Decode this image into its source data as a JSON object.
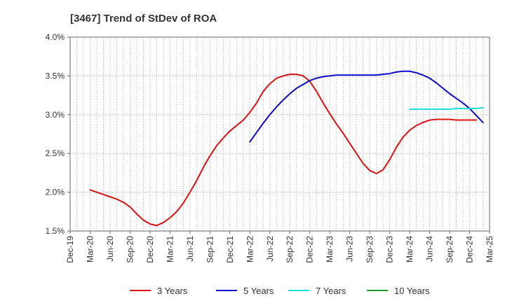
{
  "chart_data": {
    "type": "line",
    "title": "[3467]  Trend of StDev of ROA",
    "xlabel": "",
    "ylabel": "",
    "x_ticks": [
      "Dec-19",
      "Mar-20",
      "Jun-20",
      "Sep-20",
      "Dec-20",
      "Mar-21",
      "Jun-21",
      "Sep-21",
      "Dec-21",
      "Mar-22",
      "Jun-22",
      "Sep-22",
      "Dec-22",
      "Mar-23",
      "Jun-23",
      "Sep-23",
      "Dec-23",
      "Mar-24",
      "Jun-24",
      "Sep-24",
      "Dec-24",
      "Mar-25"
    ],
    "y_ticks": [
      "1.5%",
      "2.0%",
      "2.5%",
      "3.0%",
      "3.5%",
      "4.0%"
    ],
    "ylim": [
      1.5,
      4.0
    ],
    "grid": true,
    "legend_position": "bottom",
    "series": [
      {
        "name": "3 Years",
        "color": "#dd1111",
        "points": [
          [
            "Mar-20",
            2.03
          ],
          [
            "Apr-20",
            2.0
          ],
          [
            "May-20",
            1.97
          ],
          [
            "Jun-20",
            1.94
          ],
          [
            "Jul-20",
            1.91
          ],
          [
            "Aug-20",
            1.87
          ],
          [
            "Sep-20",
            1.81
          ],
          [
            "Oct-20",
            1.72
          ],
          [
            "Nov-20",
            1.64
          ],
          [
            "Dec-20",
            1.59
          ],
          [
            "Jan-21",
            1.57
          ],
          [
            "Feb-21",
            1.61
          ],
          [
            "Mar-21",
            1.67
          ],
          [
            "Apr-21",
            1.75
          ],
          [
            "May-21",
            1.86
          ],
          [
            "Jun-21",
            2.0
          ],
          [
            "Jul-21",
            2.15
          ],
          [
            "Aug-21",
            2.32
          ],
          [
            "Sep-21",
            2.47
          ],
          [
            "Oct-21",
            2.6
          ],
          [
            "Nov-21",
            2.7
          ],
          [
            "Dec-21",
            2.79
          ],
          [
            "Jan-22",
            2.86
          ],
          [
            "Feb-22",
            2.93
          ],
          [
            "Mar-22",
            3.03
          ],
          [
            "Apr-22",
            3.15
          ],
          [
            "May-22",
            3.3
          ],
          [
            "Jun-22",
            3.4
          ],
          [
            "Jul-22",
            3.47
          ],
          [
            "Aug-22",
            3.5
          ],
          [
            "Sep-22",
            3.52
          ],
          [
            "Oct-22",
            3.52
          ],
          [
            "Nov-22",
            3.5
          ],
          [
            "Dec-22",
            3.43
          ],
          [
            "Jan-23",
            3.3
          ],
          [
            "Feb-23",
            3.15
          ],
          [
            "Mar-23",
            3.01
          ],
          [
            "Apr-23",
            2.88
          ],
          [
            "May-23",
            2.76
          ],
          [
            "Jun-23",
            2.63
          ],
          [
            "Jul-23",
            2.5
          ],
          [
            "Aug-23",
            2.37
          ],
          [
            "Sep-23",
            2.28
          ],
          [
            "Oct-23",
            2.24
          ],
          [
            "Nov-23",
            2.29
          ],
          [
            "Dec-23",
            2.42
          ],
          [
            "Jan-24",
            2.58
          ],
          [
            "Feb-24",
            2.71
          ],
          [
            "Mar-24",
            2.8
          ],
          [
            "Apr-24",
            2.86
          ],
          [
            "May-24",
            2.9
          ],
          [
            "Jun-24",
            2.93
          ],
          [
            "Jul-24",
            2.94
          ],
          [
            "Aug-24",
            2.94
          ],
          [
            "Sep-24",
            2.94
          ],
          [
            "Oct-24",
            2.93
          ],
          [
            "Nov-24",
            2.93
          ],
          [
            "Dec-24",
            2.93
          ],
          [
            "Jan-25",
            2.93
          ]
        ]
      },
      {
        "name": "5 Years",
        "color": "#0a0acc",
        "points": [
          [
            "Mar-22",
            2.65
          ],
          [
            "Apr-22",
            2.77
          ],
          [
            "May-22",
            2.89
          ],
          [
            "Jun-22",
            3.0
          ],
          [
            "Jul-22",
            3.1
          ],
          [
            "Aug-22",
            3.19
          ],
          [
            "Sep-22",
            3.27
          ],
          [
            "Oct-22",
            3.34
          ],
          [
            "Nov-22",
            3.39
          ],
          [
            "Dec-22",
            3.44
          ],
          [
            "Jan-23",
            3.47
          ],
          [
            "Feb-23",
            3.49
          ],
          [
            "Mar-23",
            3.5
          ],
          [
            "Apr-23",
            3.51
          ],
          [
            "May-23",
            3.51
          ],
          [
            "Jun-23",
            3.51
          ],
          [
            "Jul-23",
            3.51
          ],
          [
            "Aug-23",
            3.51
          ],
          [
            "Sep-23",
            3.51
          ],
          [
            "Oct-23",
            3.51
          ],
          [
            "Nov-23",
            3.52
          ],
          [
            "Dec-23",
            3.53
          ],
          [
            "Jan-24",
            3.55
          ],
          [
            "Feb-24",
            3.56
          ],
          [
            "Mar-24",
            3.56
          ],
          [
            "Apr-24",
            3.54
          ],
          [
            "May-24",
            3.51
          ],
          [
            "Jun-24",
            3.47
          ],
          [
            "Jul-24",
            3.41
          ],
          [
            "Aug-24",
            3.34
          ],
          [
            "Sep-24",
            3.27
          ],
          [
            "Oct-24",
            3.21
          ],
          [
            "Nov-24",
            3.15
          ],
          [
            "Dec-24",
            3.08
          ],
          [
            "Jan-25",
            2.99
          ],
          [
            "Feb-25",
            2.9
          ]
        ]
      },
      {
        "name": "7 Years",
        "color": "#22dddd",
        "points": [
          [
            "Mar-24",
            3.07
          ],
          [
            "Apr-24",
            3.07
          ],
          [
            "May-24",
            3.07
          ],
          [
            "Jun-24",
            3.07
          ],
          [
            "Jul-24",
            3.07
          ],
          [
            "Aug-24",
            3.07
          ],
          [
            "Sep-24",
            3.07
          ],
          [
            "Oct-24",
            3.08
          ],
          [
            "Nov-24",
            3.08
          ],
          [
            "Dec-24",
            3.08
          ],
          [
            "Jan-25",
            3.08
          ],
          [
            "Feb-25",
            3.09
          ]
        ]
      },
      {
        "name": "10 Years",
        "color": "#229922",
        "points": []
      }
    ]
  }
}
